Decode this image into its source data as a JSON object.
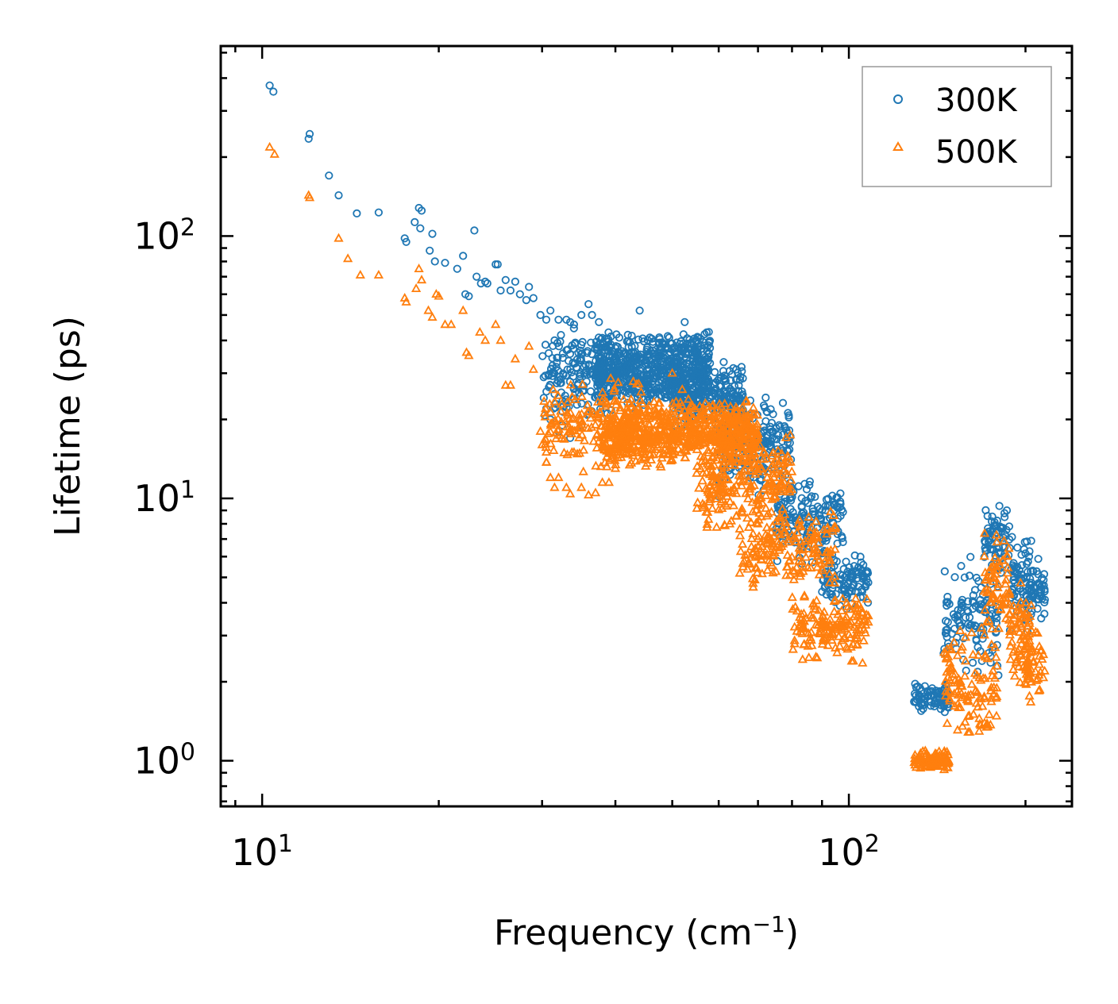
{
  "chart_data": {
    "type": "scatter",
    "title": "",
    "xlabel": "Frequency (cm",
    "xlabel_sup": "−1",
    "xlabel_suffix": ")",
    "ylabel": "Lifetime (ps)",
    "xscale": "log",
    "yscale": "log",
    "xlim": [
      8.5,
      240
    ],
    "ylim": [
      0.67,
      530
    ],
    "x_major_ticks": [
      {
        "value": 10,
        "base": "10",
        "exp": "1"
      },
      {
        "value": 100,
        "base": "10",
        "exp": "2"
      }
    ],
    "y_major_ticks": [
      {
        "value": 1,
        "base": "10",
        "exp": "0"
      },
      {
        "value": 10,
        "base": "10",
        "exp": "1"
      },
      {
        "value": 100,
        "base": "10",
        "exp": "2"
      }
    ],
    "legend": {
      "position": "upper right"
    },
    "series": [
      {
        "name": "300K",
        "color": "#1f77b4",
        "marker": "circle",
        "points": [
          [
            10.3,
            375
          ],
          [
            10.45,
            355
          ],
          [
            12.0,
            235
          ],
          [
            12.05,
            245
          ],
          [
            13.0,
            170
          ],
          [
            13.5,
            143
          ],
          [
            14.5,
            122
          ],
          [
            15.8,
            123
          ],
          [
            17.5,
            98
          ],
          [
            17.6,
            95
          ],
          [
            18.2,
            113
          ],
          [
            18.5,
            128
          ],
          [
            18.6,
            107
          ],
          [
            18.7,
            125
          ],
          [
            19.3,
            88
          ],
          [
            19.5,
            102
          ],
          [
            19.7,
            80
          ],
          [
            20.5,
            79
          ],
          [
            21.5,
            75
          ],
          [
            22.0,
            84
          ],
          [
            22.2,
            60
          ],
          [
            22.5,
            59
          ],
          [
            23.0,
            105
          ],
          [
            23.2,
            70
          ],
          [
            23.6,
            66
          ],
          [
            24.0,
            67
          ],
          [
            24.2,
            66
          ],
          [
            25.0,
            78
          ],
          [
            25.2,
            78
          ],
          [
            25.5,
            62
          ],
          [
            26.0,
            68
          ],
          [
            26.5,
            62
          ],
          [
            27.0,
            67
          ],
          [
            27.5,
            60
          ],
          [
            28.2,
            57
          ],
          [
            28.5,
            64
          ],
          [
            29.0,
            58
          ],
          [
            29.8,
            50
          ],
          [
            30.5,
            48
          ],
          [
            31.0,
            52
          ],
          [
            31.5,
            40
          ],
          [
            32.0,
            48
          ],
          [
            33.0,
            48
          ],
          [
            33.5,
            47
          ],
          [
            34.0,
            46
          ],
          [
            35.0,
            50
          ],
          [
            36.0,
            55
          ],
          [
            36.5,
            50
          ],
          [
            37.5,
            47
          ],
          [
            44.0,
            52
          ],
          [
            52.5,
            47
          ],
          [
            55.0,
            40
          ],
          [
            42.0,
            42
          ],
          [
            30.5,
            22
          ],
          [
            31.0,
            20
          ],
          [
            31.5,
            25
          ],
          [
            32.0,
            18
          ],
          [
            32.5,
            19
          ],
          [
            33.0,
            23
          ],
          [
            33.5,
            17
          ],
          [
            34.0,
            24
          ],
          [
            34.5,
            27
          ],
          [
            35.0,
            19
          ],
          [
            36.0,
            21
          ]
        ],
        "bands": [
          {
            "x": [
              30,
              40
            ],
            "y": [
              20,
              45
            ],
            "n": 180
          },
          {
            "x": [
              37,
              58
            ],
            "y": [
              22,
              44
            ],
            "n": 650
          },
          {
            "x": [
              50,
              66
            ],
            "y": [
              18,
              34
            ],
            "n": 250
          },
          {
            "x": [
              60,
              80
            ],
            "y": [
              10,
              26
            ],
            "n": 200
          },
          {
            "x": [
              75,
              98
            ],
            "y": [
              5.5,
              12
            ],
            "n": 170
          },
          {
            "x": [
              90,
              108
            ],
            "y": [
              3.7,
              6.5
            ],
            "n": 110
          },
          {
            "x": [
              129,
              148
            ],
            "y": [
              1.5,
              2.0
            ],
            "n": 90
          },
          {
            "x": [
              145,
              180
            ],
            "y": [
              2.0,
              6.0
            ],
            "n": 120
          },
          {
            "x": [
              170,
              188
            ],
            "y": [
              5.0,
              10.0
            ],
            "n": 70
          },
          {
            "x": [
              188,
              205
            ],
            "y": [
              3.0,
              7.5
            ],
            "n": 70
          },
          {
            "x": [
              200,
              216
            ],
            "y": [
              3.2,
              6.0
            ],
            "n": 50
          }
        ]
      },
      {
        "name": "500K",
        "color": "#ff7f0e",
        "marker": "triangle",
        "points": [
          [
            10.3,
            218
          ],
          [
            10.5,
            205
          ],
          [
            12.0,
            143
          ],
          [
            12.05,
            140
          ],
          [
            13.5,
            98
          ],
          [
            14.0,
            82
          ],
          [
            14.7,
            71
          ],
          [
            15.8,
            71
          ],
          [
            17.5,
            58
          ],
          [
            17.6,
            56
          ],
          [
            18.3,
            63
          ],
          [
            18.5,
            75
          ],
          [
            18.7,
            68
          ],
          [
            19.2,
            52
          ],
          [
            19.5,
            49
          ],
          [
            19.8,
            60
          ],
          [
            20.0,
            59
          ],
          [
            20.5,
            46
          ],
          [
            21.0,
            46
          ],
          [
            22.0,
            52
          ],
          [
            22.3,
            36
          ],
          [
            22.5,
            35
          ],
          [
            23.5,
            43
          ],
          [
            24.0,
            40
          ],
          [
            25.0,
            46
          ],
          [
            25.5,
            40
          ],
          [
            26.0,
            27
          ],
          [
            26.5,
            27
          ],
          [
            27.0,
            34
          ],
          [
            28.5,
            38
          ],
          [
            29.0,
            31
          ],
          [
            29.8,
            18
          ],
          [
            30.0,
            16
          ],
          [
            30.5,
            15
          ],
          [
            31.0,
            12
          ],
          [
            31.5,
            11
          ],
          [
            32.0,
            12
          ],
          [
            33.0,
            11
          ],
          [
            33.5,
            10.4
          ],
          [
            34.0,
            15
          ],
          [
            35.0,
            11
          ],
          [
            36.0,
            10.3
          ],
          [
            37.0,
            10.5
          ],
          [
            38.0,
            11.5
          ],
          [
            39.0,
            11.5
          ],
          [
            40.0,
            13
          ],
          [
            50.0,
            30
          ],
          [
            52.0,
            26
          ]
        ],
        "bands": [
          {
            "x": [
              30,
              45
            ],
            "y": [
              12,
              30
            ],
            "n": 180
          },
          {
            "x": [
              38,
              70
            ],
            "y": [
              13,
              24
            ],
            "n": 700
          },
          {
            "x": [
              55,
              80
            ],
            "y": [
              7.5,
              18
            ],
            "n": 250
          },
          {
            "x": [
              65,
              95
            ],
            "y": [
              4.5,
              9.0
            ],
            "n": 180
          },
          {
            "x": [
              80,
              108
            ],
            "y": [
              2.3,
              4.5
            ],
            "n": 170
          },
          {
            "x": [
              129,
              148
            ],
            "y": [
              0.92,
              1.1
            ],
            "n": 90
          },
          {
            "x": [
              145,
              180
            ],
            "y": [
              1.1,
              3.5
            ],
            "n": 120
          },
          {
            "x": [
              170,
              188
            ],
            "y": [
              3.0,
              7.5
            ],
            "n": 70
          },
          {
            "x": [
              188,
              205
            ],
            "y": [
              1.8,
              5.0
            ],
            "n": 70
          },
          {
            "x": [
              200,
              216
            ],
            "y": [
              1.6,
              3.5
            ],
            "n": 50
          }
        ]
      }
    ]
  }
}
